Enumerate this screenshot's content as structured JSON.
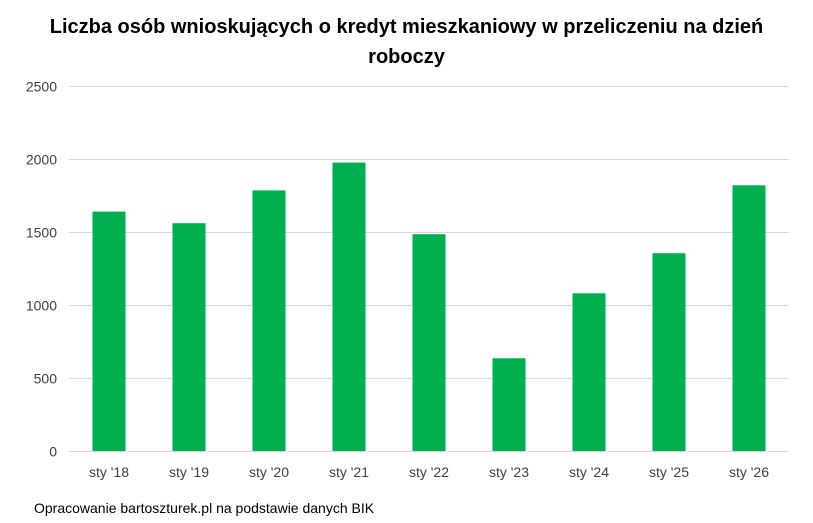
{
  "chart_data": {
    "type": "bar",
    "title": "Liczba osób wnioskujących o kredyt mieszkaniowy w przeliczeniu na dzień roboczy",
    "xlabel": "",
    "ylabel": "",
    "categories": [
      "sty '18",
      "sty '19",
      "sty '20",
      "sty '21",
      "sty '22",
      "sty '23",
      "sty '24",
      "sty '25",
      "sty '26"
    ],
    "series": [
      {
        "values": [
          1640,
          1560,
          1785,
          1975,
          1485,
          635,
          1080,
          1355,
          1820
        ]
      }
    ],
    "ylim": [
      0,
      2500
    ],
    "yticks": [
      0,
      500,
      1000,
      1500,
      2000,
      2500
    ],
    "grid": true,
    "legend": "none",
    "bar_color": "#00b050"
  },
  "source": "Opracowanie bartoszturek.pl na podstawie danych BIK"
}
